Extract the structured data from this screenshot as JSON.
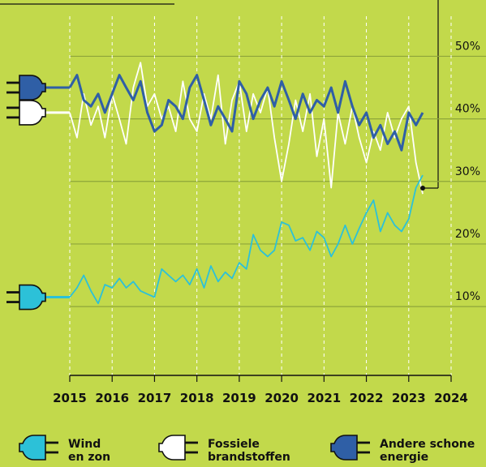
{
  "chart_data": {
    "type": "line",
    "x": [
      2015.0,
      2015.17,
      2015.33,
      2015.5,
      2015.67,
      2015.83,
      2016.0,
      2016.17,
      2016.33,
      2016.5,
      2016.67,
      2016.83,
      2017.0,
      2017.17,
      2017.33,
      2017.5,
      2017.67,
      2017.83,
      2018.0,
      2018.17,
      2018.33,
      2018.5,
      2018.67,
      2018.83,
      2019.0,
      2019.17,
      2019.33,
      2019.5,
      2019.67,
      2019.83,
      2020.0,
      2020.17,
      2020.33,
      2020.5,
      2020.67,
      2020.83,
      2021.0,
      2021.17,
      2021.33,
      2021.5,
      2021.67,
      2021.83,
      2022.0,
      2022.17,
      2022.33,
      2022.5,
      2022.67,
      2022.83,
      2023.0,
      2023.17,
      2023.33
    ],
    "series": [
      {
        "name": "Wind en zon",
        "color": "#2cc1d8",
        "values": [
          11.5,
          13,
          15,
          12.5,
          10.5,
          13.5,
          13,
          14.5,
          13,
          14,
          12.5,
          12,
          11.5,
          16,
          15,
          14,
          15,
          13.5,
          16,
          13,
          16.5,
          14,
          15.5,
          14.5,
          17,
          16,
          21.5,
          19,
          18,
          19,
          23.5,
          23,
          20.5,
          21,
          19,
          22,
          21,
          18,
          20,
          23,
          20,
          22.5,
          25,
          27,
          22,
          25,
          23,
          22,
          24,
          29,
          31
        ]
      },
      {
        "name": "Fossiele brandstoffen",
        "color": "#ffffff",
        "values": [
          41,
          37,
          44,
          39,
          42,
          37,
          44,
          40,
          36,
          45,
          49,
          42,
          44,
          40,
          42,
          38,
          46,
          40,
          38,
          44,
          40,
          47,
          36,
          43,
          46,
          38,
          44,
          41,
          45,
          37,
          30,
          36,
          43,
          38,
          44,
          34,
          40,
          29,
          41,
          36,
          42,
          37,
          33,
          38,
          35,
          41,
          37,
          40,
          42,
          33,
          28
        ]
      },
      {
        "name": "Andere schone energie",
        "color": "#2f5fa6",
        "values": [
          45,
          47,
          43,
          42,
          44,
          41,
          44,
          47,
          45,
          43,
          46,
          41,
          38,
          39,
          43,
          42,
          40,
          45,
          47,
          43,
          39,
          42,
          40,
          38,
          46,
          44,
          40,
          43,
          45,
          42,
          46,
          43,
          40,
          44,
          41,
          43,
          42,
          45,
          41,
          46,
          42,
          39,
          41,
          37,
          39,
          36,
          38,
          35,
          41,
          39,
          41
        ]
      }
    ],
    "xlim": [
      2015,
      2024
    ],
    "xticks": [
      2015,
      2016,
      2017,
      2018,
      2019,
      2020,
      2021,
      2022,
      2023,
      2024
    ],
    "ylim": [
      -1,
      59
    ],
    "yticks": [
      {
        "value": 10,
        "label": "10%"
      },
      {
        "value": 20,
        "label": "20%"
      },
      {
        "value": 30,
        "label": "30%"
      },
      {
        "value": 40,
        "label": "40%"
      },
      {
        "value": 50,
        "label": "50%"
      }
    ],
    "grid": true
  }
}
